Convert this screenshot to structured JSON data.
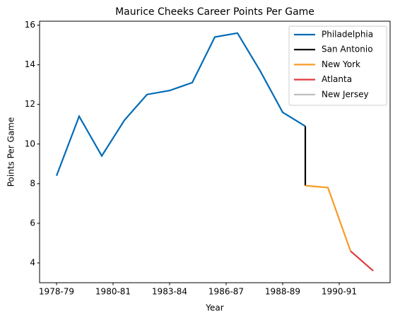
{
  "chart_data": {
    "type": "line",
    "title": "Maurice Cheeks Career Points Per Game",
    "x_label": "Year",
    "y_label": "Points Per Game",
    "series": [
      {
        "name": "Philadelphia",
        "color": "#006bb6",
        "x": [
          0,
          1,
          2,
          3,
          4,
          5,
          6,
          7,
          8,
          9,
          10,
          11
        ],
        "values": [
          8.4,
          11.4,
          9.4,
          11.2,
          12.5,
          12.7,
          13.1,
          15.4,
          15.6,
          13.7,
          11.6,
          10.9
        ]
      },
      {
        "name": "San Antonio",
        "color": "#000000",
        "x": [
          11,
          11
        ],
        "values": [
          10.9,
          7.9
        ]
      },
      {
        "name": "New York",
        "color": "#f59d26",
        "x": [
          11,
          12,
          13
        ],
        "values": [
          7.9,
          7.8,
          4.6
        ]
      },
      {
        "name": "Atlanta",
        "color": "#e03a3e",
        "x": [
          13,
          14
        ],
        "values": [
          4.6,
          3.6
        ]
      },
      {
        "name": "New Jersey",
        "color": "#bbbbbb",
        "x": [
          14
        ],
        "values": [
          3.6
        ]
      }
    ],
    "xlim": [
      -0.75,
      14.75
    ],
    "xticks": [
      {
        "value": 0,
        "label": "1978-79"
      },
      {
        "value": 2.5,
        "label": "1980-81"
      },
      {
        "value": 5,
        "label": "1983-84"
      },
      {
        "value": 7.5,
        "label": "1986-87"
      },
      {
        "value": 10,
        "label": "1988-89"
      },
      {
        "value": 12.5,
        "label": "1990-91"
      }
    ],
    "ylim": [
      3.0,
      16.2
    ],
    "yticks": [
      4,
      6,
      8,
      10,
      12,
      14,
      16
    ],
    "legend": "upper right",
    "grid": false
  }
}
